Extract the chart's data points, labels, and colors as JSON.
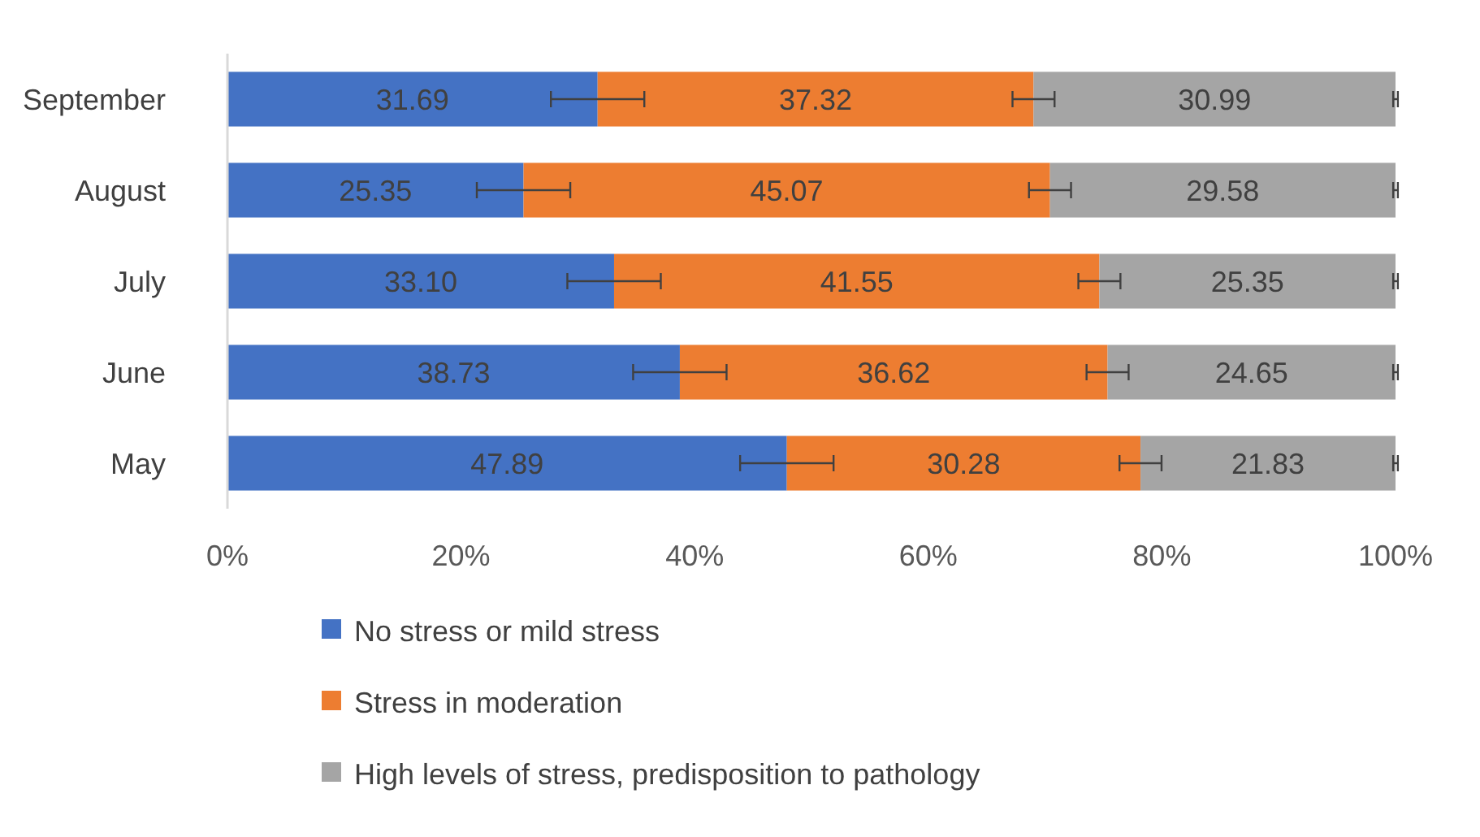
{
  "chart_data": {
    "type": "bar",
    "orientation": "horizontal",
    "stacked": true,
    "categories": [
      "September",
      "August",
      "July",
      "June",
      "May"
    ],
    "series": [
      {
        "name": "No stress or mild stress",
        "color": "#4472c4",
        "values": [
          31.69,
          25.35,
          33.1,
          38.73,
          47.89
        ],
        "value_labels": [
          "31.69",
          "25.35",
          "33.10",
          "38.73",
          "47.89"
        ],
        "errors": [
          4,
          4,
          4,
          4,
          4
        ]
      },
      {
        "name": "Stress in moderation",
        "color": "#ed7d31",
        "values": [
          37.32,
          45.07,
          41.55,
          36.62,
          30.28
        ],
        "value_labels": [
          "37.32",
          "45.07",
          "41.55",
          "36.62",
          "30.28"
        ],
        "errors": [
          1.8,
          1.8,
          1.8,
          1.8,
          1.8
        ]
      },
      {
        "name": "High levels of stress, predisposition to pathology",
        "color": "#a5a5a5",
        "values": [
          30.99,
          29.58,
          25.35,
          24.65,
          21.83
        ],
        "value_labels": [
          "30.99",
          "29.58",
          "25.35",
          "24.65",
          "21.83"
        ],
        "errors": [
          0.2,
          0.2,
          0.2,
          0.2,
          0.2
        ]
      }
    ],
    "xlim": [
      0,
      100
    ],
    "xticks": [
      {
        "value": 0,
        "label": "0%"
      },
      {
        "value": 20,
        "label": "20%"
      },
      {
        "value": 40,
        "label": "40%"
      },
      {
        "value": 60,
        "label": "60%"
      },
      {
        "value": 80,
        "label": "80%"
      },
      {
        "value": 100,
        "label": "100%"
      }
    ],
    "legend": "bottom",
    "grid": false
  }
}
